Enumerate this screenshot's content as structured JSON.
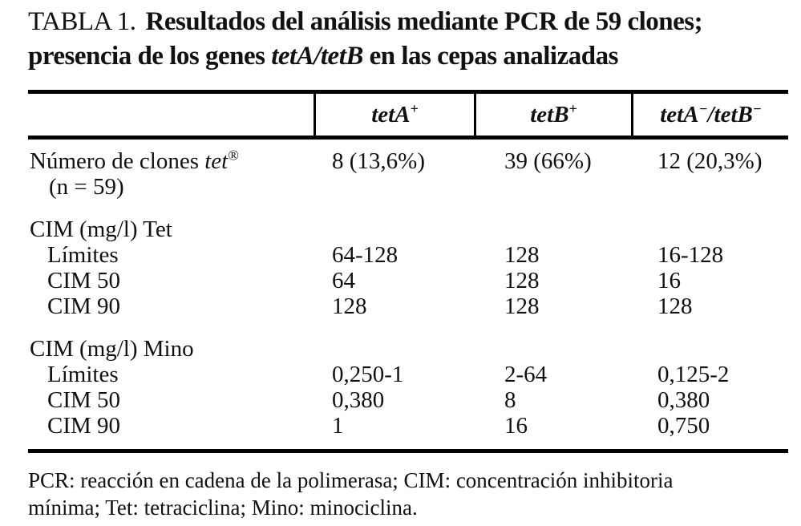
{
  "title": {
    "table_label": "TABLA 1.",
    "line1": "Resultados del análisis mediante PCR de 59 clones;",
    "line2_pre": "presencia de los genes ",
    "line2_italic": "tetA/tetB",
    "line2_post": " en las cepas analizadas"
  },
  "table": {
    "headers": [
      {
        "parts": [
          {
            "text": "tetA",
            "sup": "+"
          }
        ]
      },
      {
        "parts": [
          {
            "text": "tetB",
            "sup": "+"
          }
        ]
      },
      {
        "parts": [
          {
            "text": "tetA",
            "sup": "−"
          },
          {
            "text": "/tetB",
            "sup": "−"
          }
        ]
      }
    ],
    "clones_row": {
      "label_pre": "Número de clones ",
      "label_gene": "tet",
      "label_sup": "®",
      "label_line2": "(n = 59)",
      "values": [
        "8 (13,6%)",
        "39 (66%)",
        "12 (20,3%)"
      ]
    },
    "sections": [
      {
        "title": "CIM (mg/l) Tet",
        "rows": [
          {
            "label": "Límites",
            "values": [
              "64-128",
              "128",
              "16-128"
            ]
          },
          {
            "label": "CIM 50",
            "values": [
              "64",
              "128",
              "16"
            ]
          },
          {
            "label": "CIM 90",
            "values": [
              "128",
              "128",
              "128"
            ]
          }
        ]
      },
      {
        "title": "CIM (mg/l) Mino",
        "rows": [
          {
            "label": "Límites",
            "values": [
              "0,250-1",
              "2-64",
              "0,125-2"
            ]
          },
          {
            "label": "CIM 50",
            "values": [
              "0,380",
              "8",
              "0,380"
            ]
          },
          {
            "label": "CIM 90",
            "values": [
              "1",
              "16",
              "0,750"
            ]
          }
        ]
      }
    ]
  },
  "footnote_lines": [
    "PCR: reacción en cadena de la polimerasa; CIM: concentración inhibitoria",
    "mínima; Tet: tetraciclina; Mino: minociclina."
  ]
}
